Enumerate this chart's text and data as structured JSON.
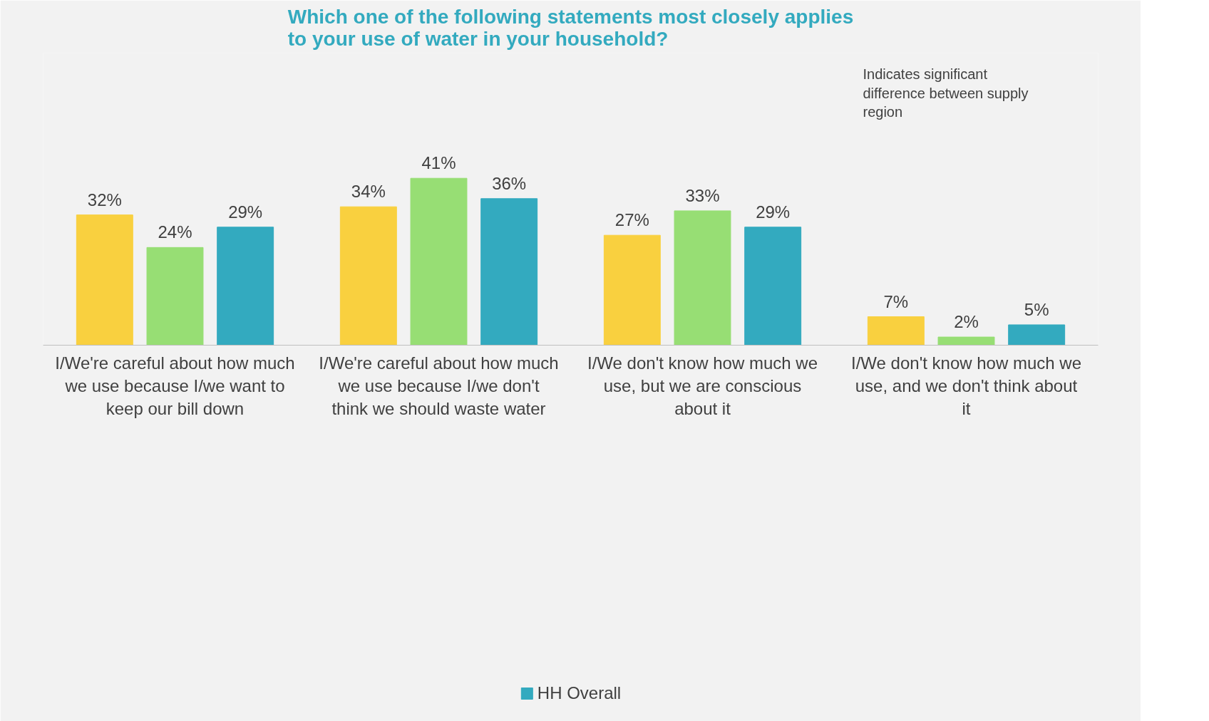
{
  "chart_data": {
    "type": "bar",
    "title": "Which one of the following statements most closely applies to your use of water in your household?",
    "categories": [
      "I/We're careful about how much we use because I/we want to keep our bill down",
      "I/We're careful about how much we use because I/we don't think we should waste water",
      "I/We don't know how much we use, but we are conscious about it",
      "I/We don't know how much we use, and we don't think about it"
    ],
    "series": [
      {
        "color": "#f9d03f",
        "values": [
          32,
          34,
          27,
          7
        ],
        "value_labels": [
          "32%",
          "34%",
          "27%",
          "7%"
        ]
      },
      {
        "color": "#97de74",
        "values": [
          24,
          41,
          33,
          2
        ],
        "value_labels": [
          "24%",
          "41%",
          "33%",
          "2%"
        ]
      },
      {
        "name": "HH Overall",
        "color": "#33aabf",
        "values": [
          29,
          36,
          29,
          5
        ],
        "value_labels": [
          "29%",
          "36%",
          "29%",
          "5%"
        ]
      }
    ],
    "data_labels": true,
    "grid": false,
    "legend": "bottom",
    "annotations": [
      "Indicates significant difference between supply region"
    ]
  }
}
